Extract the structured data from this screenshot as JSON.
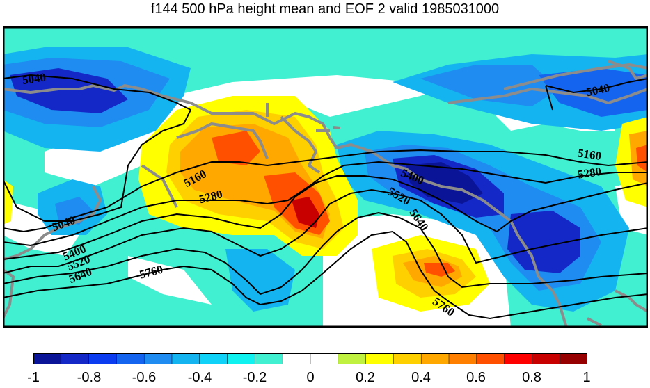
{
  "title": "f144 500 hPa height mean and EOF 2 valid 1985031000",
  "colorbar": {
    "colors": [
      "#0a1496",
      "#1428c8",
      "#0c3cf0",
      "#1464f0",
      "#1e8cf0",
      "#14b4f0",
      "#10d2f8",
      "#10f2f0",
      "#40f0d0",
      "#ffffff",
      "#ffffff",
      "#c0f040",
      "#ffff00",
      "#ffd000",
      "#ffa800",
      "#ff8000",
      "#ff5000",
      "#ff0000",
      "#c80000",
      "#960000"
    ],
    "tick_labels": [
      "-1",
      "-0.8",
      "-0.6",
      "-0.4",
      "-0.2",
      "0",
      "0.2",
      "0.4",
      "0.6",
      "0.8",
      "1"
    ]
  },
  "contours": {
    "labels": [
      "5040",
      "5040",
      "5040",
      "5160",
      "5160",
      "5280",
      "5280",
      "5400",
      "5400",
      "5520",
      "5520",
      "5640",
      "5640",
      "5760",
      "5760"
    ]
  },
  "colors": {
    "background_field": "#40f0d0",
    "coastline": "#8c8c8c",
    "contour": "#000000"
  }
}
